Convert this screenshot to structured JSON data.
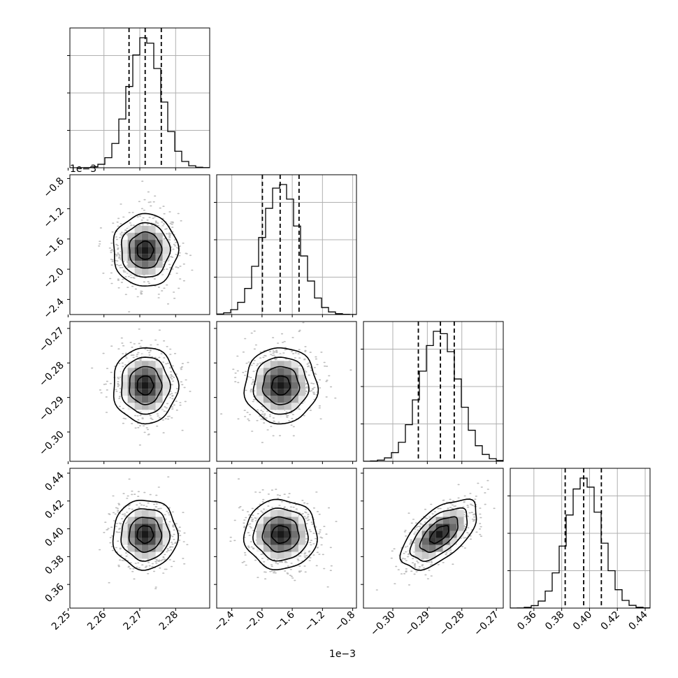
{
  "chart_data": {
    "type": "corner",
    "parameters": [
      {
        "range": [
          2.2505,
          2.2895
        ],
        "ticks": [
          2.25,
          2.26,
          2.27,
          2.28
        ],
        "tick_labels": [
          "2.25",
          "2.26",
          "2.27",
          "2.28"
        ],
        "quantiles": [
          2.267,
          2.2715,
          2.276
        ],
        "mean": 2.2715,
        "sd": 0.0045
      },
      {
        "range": [
          -2.6,
          -0.75
        ],
        "ticks": [
          -2.4,
          -2.0,
          -1.6,
          -1.2,
          -0.8
        ],
        "tick_labels": [
          "−2.4",
          "−2.0",
          "−1.6",
          "−1.2",
          "−0.8"
        ],
        "quantiles": [
          -1.995,
          -1.76,
          -1.51
        ],
        "mean": -1.75,
        "sd": 0.24
      },
      {
        "range": [
          -0.3085,
          -0.268
        ],
        "ticks": [
          -0.3,
          -0.29,
          -0.28,
          -0.27
        ],
        "tick_labels": [
          "−0.30",
          "−0.29",
          "−0.28",
          "−0.27"
        ],
        "quantiles": [
          -0.2926,
          -0.2862,
          -0.2822
        ],
        "mean": -0.2865,
        "sd": 0.0055
      },
      {
        "range": [
          0.343,
          0.4435
        ],
        "ticks": [
          0.36,
          0.38,
          0.4,
          0.42,
          0.44
        ],
        "tick_labels": [
          "0.36",
          "0.38",
          "0.40",
          "0.42",
          "0.44"
        ],
        "quantiles": [
          0.3825,
          0.3958,
          0.4085
        ],
        "mean": 0.396,
        "sd": 0.0125
      }
    ],
    "offset_labels": {
      "x_param2": "1e−3",
      "y_param2": "1e−3"
    },
    "histogram_bins": 20,
    "correlations": {
      "3-4": 0.6
    },
    "grid": true,
    "colors": {
      "contour": "#000000",
      "points": "#888888",
      "quantile_line": "#000000",
      "grid": "#b0b0b0"
    }
  }
}
